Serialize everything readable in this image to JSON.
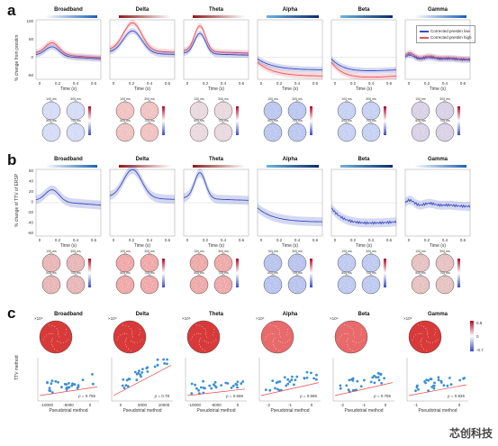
{
  "panel_labels": [
    "a",
    "b",
    "c"
  ],
  "bands": [
    "Broadband",
    "Delta",
    "Theta",
    "Alpha",
    "Beta",
    "Gamma"
  ],
  "row_a": {
    "ylabel": "% change from prestim",
    "xlabel": "Time (s)",
    "yticks": [
      "100",
      "50",
      "0",
      "-50"
    ],
    "xticks": [
      "0",
      "0.2",
      "0.4",
      "0.6"
    ],
    "topo_times": [
      "100 ms",
      "300 ms",
      "500 ms",
      "700 ms"
    ],
    "legend": [
      "Corrected prestim low",
      "Corrected prestim high"
    ],
    "colorbar_ticks": [
      "50",
      "0",
      "-50"
    ]
  },
  "row_b": {
    "ylabel": "% change of TTV of ERSP",
    "xlabel": "Time (s)",
    "yticks": [
      "60",
      "40",
      "20",
      "0",
      "-20",
      "-40",
      "-60"
    ],
    "xticks": [
      "0",
      "0.2",
      "0.4",
      "0.6"
    ],
    "topo_times": [
      "100 ms",
      "300 ms",
      "500 ms",
      "700 ms"
    ],
    "colorbar_ticks": [
      "50",
      "0",
      "-50"
    ]
  },
  "row_c": {
    "ylabel": "TTV method",
    "xlabel": "Pseudotrial method",
    "colorbar_ticks": [
      "0.8",
      "0",
      "-0.7"
    ],
    "panels": [
      {
        "band": "Broadband",
        "exp": "×10⁴",
        "rho": "ρ = 0.755",
        "xticks": [
          "-10000",
          "-5000",
          "0"
        ]
      },
      {
        "band": "Delta",
        "exp": "×10⁴",
        "rho": "ρ = 0.78",
        "xticks": [
          "0",
          "5000",
          "10000"
        ]
      },
      {
        "band": "Theta",
        "exp": "×10⁴",
        "rho": "ρ = 0.566",
        "xticks": [
          "-10000",
          "-5000",
          "0"
        ]
      },
      {
        "band": "Alpha",
        "exp": "×10⁴",
        "rho": "ρ = 0.586",
        "xticks": [
          "-2",
          "-1",
          "0"
        ],
        "xexp": "×10⁴"
      },
      {
        "band": "Beta",
        "exp": "×10⁴",
        "rho": "ρ = 0.755",
        "xticks": [
          "-2",
          "-1",
          "0"
        ],
        "xexp": "×10⁴"
      },
      {
        "band": "Gamma",
        "exp": "×10⁴",
        "rho": "ρ = 0.926",
        "xticks": [
          "-1",
          "0"
        ]
      }
    ]
  },
  "watermark": "芯创科技",
  "colors": {
    "blue": "#3b4cc0",
    "red": "#e8535a",
    "scatter": "#3a8fd4",
    "fit": "#e24a4a"
  }
}
